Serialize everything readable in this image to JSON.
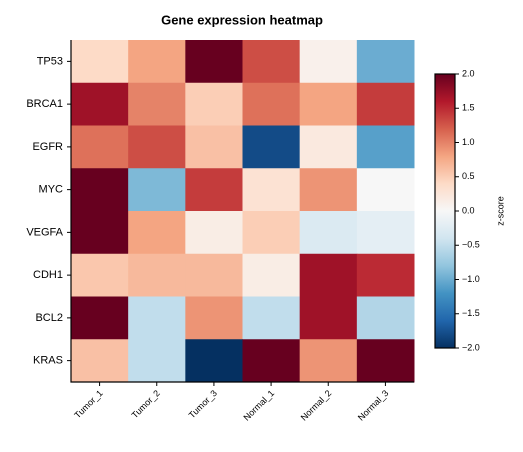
{
  "chart_data": {
    "type": "heatmap",
    "title": "Gene expression heatmap",
    "categories": [
      "Tumor_1",
      "Tumor_2",
      "Tumor_3",
      "Normal_1",
      "Normal_2",
      "Normal_3"
    ],
    "y_categories": [
      "TP53",
      "BRCA1",
      "EGFR",
      "MYC",
      "VEGFA",
      "CDH1",
      "BCL2",
      "KRAS"
    ],
    "values": [
      [
        0.4,
        0.8,
        2.0,
        1.3,
        0.1,
        -1.0
      ],
      [
        1.7,
        1.0,
        0.5,
        1.1,
        0.8,
        1.4
      ],
      [
        1.1,
        1.3,
        0.6,
        -1.8,
        0.2,
        -1.1
      ],
      [
        2.0,
        -0.9,
        1.4,
        0.3,
        0.9,
        0.0
      ],
      [
        2.0,
        0.8,
        0.15,
        0.5,
        -0.3,
        -0.2
      ],
      [
        0.55,
        0.65,
        0.65,
        0.15,
        1.7,
        1.5
      ],
      [
        2.0,
        -0.5,
        0.9,
        -0.5,
        1.7,
        -0.6
      ],
      [
        0.6,
        -0.5,
        -2.0,
        2.0,
        0.9,
        2.0
      ]
    ],
    "colormap": "RdBu_r",
    "colorbar_label": "z-score",
    "clim": [
      -2,
      2
    ],
    "cticks": [
      {
        "value": -2,
        "label": "−2.0"
      },
      {
        "value": -1.5,
        "label": "−1.5"
      },
      {
        "value": -1,
        "label": "−1.0"
      },
      {
        "value": -0.5,
        "label": "−0.5"
      },
      {
        "value": 0,
        "label": "0.0"
      },
      {
        "value": 0.5,
        "label": "0.5"
      },
      {
        "value": 1,
        "label": "1.0"
      },
      {
        "value": 1.5,
        "label": "1.5"
      },
      {
        "value": 2,
        "label": "2.0"
      }
    ]
  }
}
